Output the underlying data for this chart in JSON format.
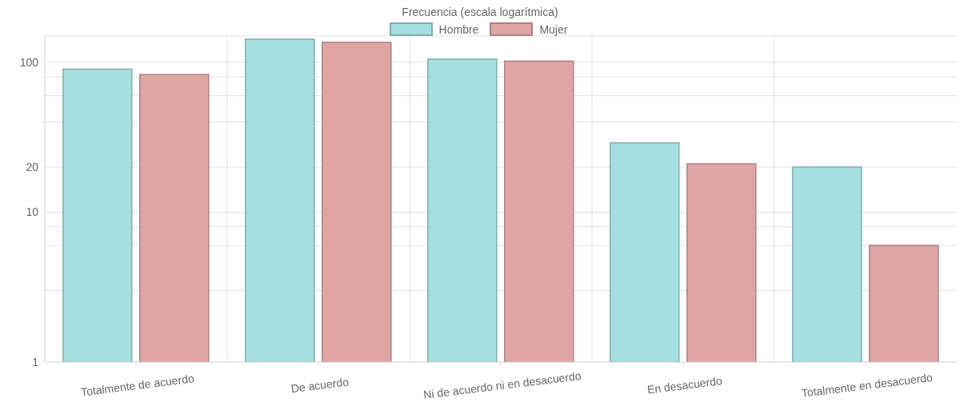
{
  "chart_data": {
    "type": "bar",
    "title": "Frecuencia (escala logarítmica)",
    "categories": [
      "Totalmente de acuerdo",
      "De acuerdo",
      "Ni de acuerdo ni en desacuerdo",
      "En desacuerdo",
      "Totalmente en desacuerdo"
    ],
    "series": [
      {
        "name": "Hombre",
        "color": "#a5dfdf",
        "values": [
          90,
          143,
          105,
          29,
          20
        ]
      },
      {
        "name": "Mujer",
        "color": "#dfa5a5",
        "values": [
          83,
          136,
          102,
          21,
          6
        ]
      }
    ],
    "log": "y",
    "ylim": [
      1,
      150
    ],
    "yticks": [
      1,
      {
        "value": 3,
        "label": null
      },
      {
        "value": 6,
        "label": null
      },
      {
        "value": 8,
        "label": null
      },
      10,
      20,
      {
        "value": 40,
        "label": null
      },
      {
        "value": 60,
        "label": null
      },
      {
        "value": 80,
        "label": null
      },
      100
    ],
    "grid": true,
    "legend": "top"
  }
}
